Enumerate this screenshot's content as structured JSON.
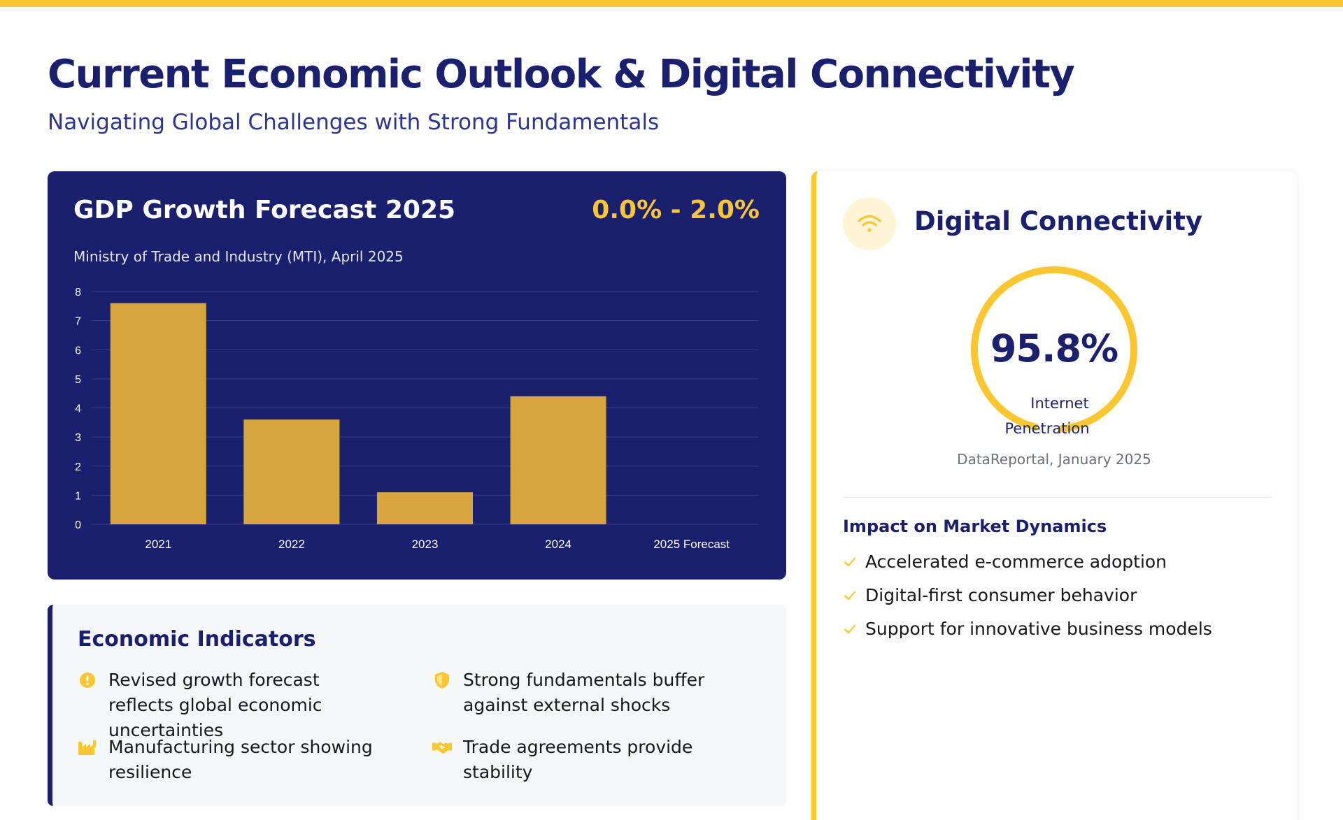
{
  "header": {
    "title": "Current Economic Outlook & Digital Connectivity",
    "subtitle": "Navigating Global Challenges with Strong Fundamentals"
  },
  "colors": {
    "navy": "#1a1f6e",
    "accent": "#fbc62f",
    "bar": "#d5a63e"
  },
  "gdp_card": {
    "title": "GDP Growth Forecast 2025",
    "range": "0.0% - 2.0%",
    "source": "Ministry of Trade and Industry (MTI), April 2025"
  },
  "chart_data": {
    "type": "bar",
    "categories": [
      "2021",
      "2022",
      "2023",
      "2024",
      "2025 Forecast"
    ],
    "values": [
      7.6,
      3.6,
      1.1,
      4.4,
      0
    ],
    "ylim": [
      0,
      8
    ],
    "yticks": [
      "0",
      "1",
      "2",
      "3",
      "4",
      "5",
      "6",
      "7",
      "8"
    ],
    "grid": true,
    "legend": "none"
  },
  "indicators": {
    "title": "Economic Indicators",
    "items": [
      {
        "icon": "exclamation-circle-icon",
        "text": "Revised growth forecast reflects global economic uncertainties"
      },
      {
        "icon": "shield-icon",
        "text": "Strong fundamentals buffer against external shocks"
      },
      {
        "icon": "industry-icon",
        "text": "Manufacturing sector showing resilience"
      },
      {
        "icon": "handshake-icon",
        "text": "Trade agreements provide stability"
      }
    ]
  },
  "digital": {
    "icon": "wifi-icon",
    "title": "Digital Connectivity",
    "value": "95.8%",
    "value_fraction": 0.958,
    "label_line1": "Internet",
    "label_line2": "Penetration",
    "source": "DataReportal, January 2025",
    "impact_title": "Impact on Market Dynamics",
    "impact_items": [
      "Accelerated e-commerce adoption",
      "Digital-first consumer behavior",
      "Support for innovative business models"
    ]
  }
}
